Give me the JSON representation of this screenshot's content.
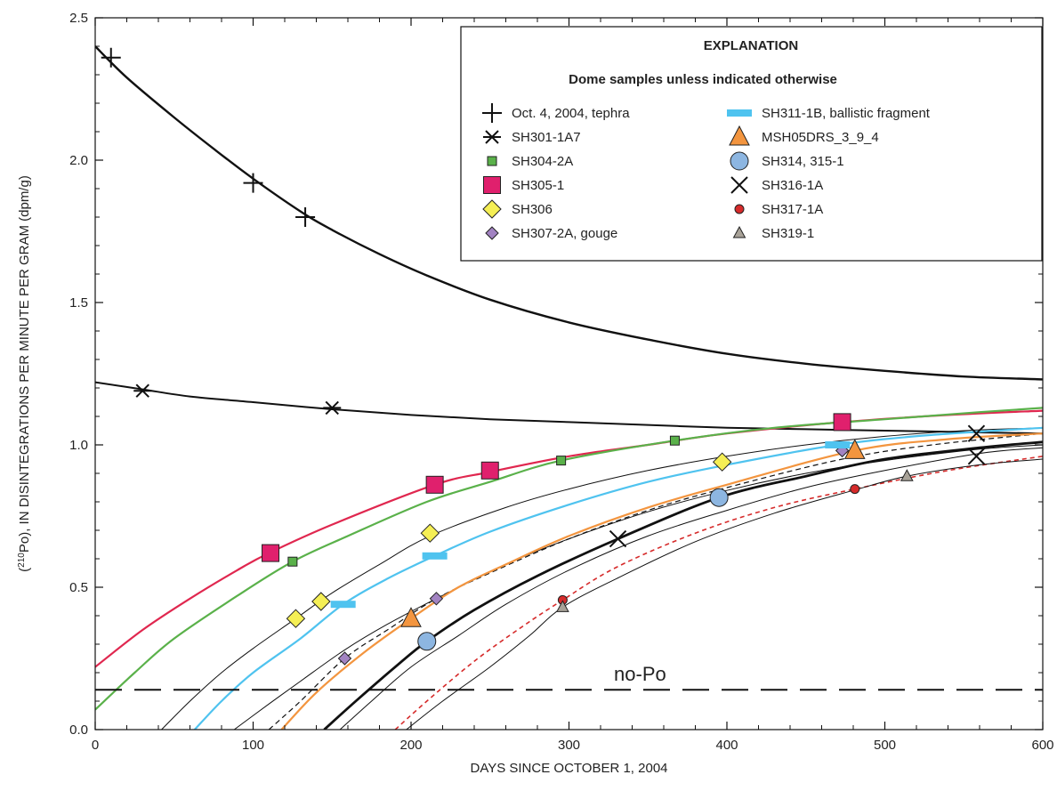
{
  "chart_data": {
    "type": "scatter",
    "xlabel": "DAYS SINCE OCTOBER 1, 2004",
    "ylabel_pre": "(",
    "ylabel_sup": "210",
    "ylabel_post": "Po), IN DISINTEGRATIONS PER MINUTE PER GRAM (dpm/g)",
    "xlim": [
      0,
      600
    ],
    "ylim": [
      0,
      2.5
    ],
    "x_ticks": [
      0,
      100,
      200,
      300,
      400,
      500,
      600
    ],
    "x_tick_labels": [
      "0",
      "100",
      "200",
      "300",
      "400",
      "500",
      "600"
    ],
    "y_ticks": [
      0,
      0.5,
      1.0,
      1.5,
      2.0,
      2.5
    ],
    "y_tick_labels": [
      "0.0",
      "0.5",
      "1.0",
      "1.5",
      "2.0",
      "2.5"
    ],
    "grid": false,
    "legend": {
      "placement": "top-right",
      "title": "EXPLANATION",
      "subtitle": "Dome samples unless indicated otherwise"
    },
    "reference_line": {
      "label": "no-Po",
      "y": 0.14,
      "style": "dashed"
    },
    "series": [
      {
        "name": "Oct. 4, 2004, tephra",
        "marker": "plus",
        "color": "#111111",
        "x": [
          10,
          100,
          133
        ],
        "y": [
          2.36,
          1.92,
          1.8
        ]
      },
      {
        "name": "SH301-1A7",
        "marker": "asterisk",
        "color": "#111111",
        "x": [
          30,
          150
        ],
        "y": [
          1.19,
          1.13
        ]
      },
      {
        "name": "SH304-2A",
        "marker": "square-small",
        "color": "#5ab14a",
        "x": [
          125,
          295,
          367
        ],
        "y": [
          0.59,
          0.945,
          1.015
        ]
      },
      {
        "name": "SH305-1",
        "marker": "square",
        "color": "#e0206d",
        "x": [
          111,
          215,
          250,
          473
        ],
        "y": [
          0.62,
          0.86,
          0.91,
          1.08
        ]
      },
      {
        "name": "SH306",
        "marker": "diamond",
        "color": "#f5ef55",
        "x": [
          127,
          143,
          212,
          397
        ],
        "y": [
          0.39,
          0.45,
          0.69,
          0.94
        ]
      },
      {
        "name": "SH307-2A, gouge",
        "marker": "diamond-small",
        "color": "#a283c2",
        "x": [
          158,
          216,
          473
        ],
        "y": [
          0.25,
          0.46,
          0.98
        ]
      },
      {
        "name": "SH311-1B, ballistic fragment",
        "marker": "bar",
        "color": "#4fc3ef",
        "x": [
          157,
          215,
          470
        ],
        "y": [
          0.44,
          0.61,
          1.0
        ]
      },
      {
        "name": "MSH05DRS_3_9_4",
        "marker": "triangle",
        "color": "#f3953f",
        "x": [
          200,
          481
        ],
        "y": [
          0.39,
          0.98
        ]
      },
      {
        "name": "SH314, 315-1",
        "marker": "circle",
        "color": "#8db6e1",
        "x": [
          210,
          395
        ],
        "y": [
          0.31,
          0.815
        ]
      },
      {
        "name": "SH316-1A",
        "marker": "x",
        "color": "#111111",
        "x": [
          331,
          558,
          558
        ],
        "y": [
          0.67,
          1.04,
          0.96
        ]
      },
      {
        "name": "SH317-1A",
        "marker": "circle-small",
        "color": "#d62b2b",
        "x": [
          296,
          481
        ],
        "y": [
          0.455,
          0.845
        ]
      },
      {
        "name": "SH319-1",
        "marker": "triangle-small",
        "color": "#a8a298",
        "x": [
          296,
          514
        ],
        "y": [
          0.43,
          0.89
        ]
      }
    ],
    "curves": [
      {
        "name": "tephra-fit",
        "color": "#111111",
        "width": 2.4,
        "dash": "",
        "x": [
          0,
          20,
          50,
          75,
          100,
          130,
          150,
          180,
          210,
          250,
          300,
          350,
          400,
          450,
          500,
          550,
          600
        ],
        "y": [
          2.4,
          2.29,
          2.15,
          2.04,
          1.935,
          1.82,
          1.755,
          1.67,
          1.595,
          1.51,
          1.43,
          1.37,
          1.32,
          1.285,
          1.26,
          1.24,
          1.23
        ]
      },
      {
        "name": "sh301-fit",
        "color": "#111111",
        "width": 2.0,
        "dash": "",
        "x": [
          0,
          30,
          60,
          100,
          150,
          200,
          250,
          300,
          350,
          400,
          450,
          500,
          550,
          600
        ],
        "y": [
          1.22,
          1.195,
          1.17,
          1.15,
          1.125,
          1.105,
          1.09,
          1.08,
          1.07,
          1.06,
          1.055,
          1.05,
          1.045,
          1.04
        ]
      },
      {
        "name": "sh305-fit",
        "color": "#e0274f",
        "width": 2.2,
        "dash": "",
        "x": [
          0,
          30,
          60,
          90,
          110,
          150,
          215,
          250,
          300,
          350,
          400,
          473,
          540,
          600
        ],
        "y": [
          0.22,
          0.35,
          0.46,
          0.56,
          0.62,
          0.72,
          0.86,
          0.905,
          0.96,
          1.0,
          1.04,
          1.08,
          1.105,
          1.12
        ]
      },
      {
        "name": "sh304-fit",
        "color": "#5ab14a",
        "width": 2.2,
        "dash": "",
        "x": [
          0,
          25,
          50,
          90,
          125,
          160,
          210,
          250,
          295,
          367,
          430,
          500,
          560,
          600
        ],
        "y": [
          0.07,
          0.2,
          0.32,
          0.47,
          0.59,
          0.68,
          0.8,
          0.87,
          0.945,
          1.015,
          1.06,
          1.09,
          1.115,
          1.13
        ]
      },
      {
        "name": "thin-1",
        "color": "#111111",
        "width": 1.0,
        "dash": "",
        "x": [
          42,
          60,
          80,
          100,
          127,
          150,
          180,
          212,
          260,
          300,
          350,
          400,
          450,
          500,
          550,
          600
        ],
        "y": [
          0.0,
          0.1,
          0.2,
          0.285,
          0.39,
          0.48,
          0.58,
          0.68,
          0.78,
          0.845,
          0.91,
          0.96,
          1.0,
          1.03,
          1.05,
          1.06
        ]
      },
      {
        "name": "sh311-fit",
        "color": "#4fc3ef",
        "width": 2.2,
        "dash": "",
        "x": [
          63,
          80,
          100,
          130,
          157,
          185,
          215,
          250,
          300,
          350,
          400,
          470,
          530,
          600
        ],
        "y": [
          0.0,
          0.1,
          0.2,
          0.32,
          0.44,
          0.53,
          0.61,
          0.695,
          0.79,
          0.87,
          0.93,
          1.0,
          1.035,
          1.06
        ]
      },
      {
        "name": "thin-2",
        "color": "#111111",
        "width": 1.0,
        "dash": "",
        "x": [
          88,
          110,
          130,
          158,
          185,
          216,
          260,
          300,
          350,
          400,
          450,
          500,
          560,
          600
        ],
        "y": [
          0.0,
          0.09,
          0.17,
          0.28,
          0.37,
          0.46,
          0.58,
          0.67,
          0.765,
          0.84,
          0.9,
          0.945,
          0.985,
          1.0
        ]
      },
      {
        "name": "sh307-fit",
        "color": "#111111",
        "width": 1.2,
        "dash": "6,4",
        "x": [
          110,
          130,
          158,
          185,
          216,
          250,
          300,
          350,
          400,
          473,
          530,
          600
        ],
        "y": [
          0.0,
          0.1,
          0.25,
          0.35,
          0.46,
          0.55,
          0.67,
          0.77,
          0.85,
          0.95,
          1.0,
          1.04
        ]
      },
      {
        "name": "msh05-fit",
        "color": "#f3953f",
        "width": 2.2,
        "dash": "",
        "x": [
          118,
          140,
          170,
          200,
          230,
          260,
          300,
          350,
          400,
          481,
          540,
          600
        ],
        "y": [
          0.0,
          0.13,
          0.27,
          0.39,
          0.5,
          0.58,
          0.68,
          0.78,
          0.86,
          0.98,
          1.02,
          1.04
        ]
      },
      {
        "name": "sh314-fit",
        "color": "#111111",
        "width": 2.8,
        "dash": "",
        "x": [
          145,
          165,
          190,
          210,
          240,
          280,
          331,
          395,
          450,
          500,
          560,
          600
        ],
        "y": [
          0.0,
          0.1,
          0.22,
          0.31,
          0.42,
          0.54,
          0.67,
          0.815,
          0.89,
          0.95,
          0.99,
          1.01
        ]
      },
      {
        "name": "thin-3",
        "color": "#111111",
        "width": 1.0,
        "dash": "",
        "x": [
          155,
          175,
          200,
          230,
          260,
          300,
          350,
          400,
          450,
          500,
          560,
          600
        ],
        "y": [
          0.0,
          0.1,
          0.22,
          0.33,
          0.44,
          0.56,
          0.68,
          0.77,
          0.85,
          0.91,
          0.97,
          0.99
        ]
      },
      {
        "name": "sh317-fit",
        "color": "#d62b2b",
        "width": 1.6,
        "dash": "5,4",
        "x": [
          190,
          210,
          240,
          270,
          296,
          330,
          380,
          430,
          481,
          540,
          600
        ],
        "y": [
          0.0,
          0.1,
          0.24,
          0.36,
          0.455,
          0.57,
          0.69,
          0.78,
          0.845,
          0.91,
          0.96
        ]
      },
      {
        "name": "thin-4",
        "color": "#111111",
        "width": 1.0,
        "dash": "",
        "x": [
          197,
          220,
          250,
          275,
          296,
          330,
          380,
          430,
          480,
          514,
          560,
          600
        ],
        "y": [
          0.0,
          0.1,
          0.22,
          0.33,
          0.43,
          0.53,
          0.66,
          0.76,
          0.84,
          0.89,
          0.93,
          0.95
        ]
      }
    ]
  }
}
